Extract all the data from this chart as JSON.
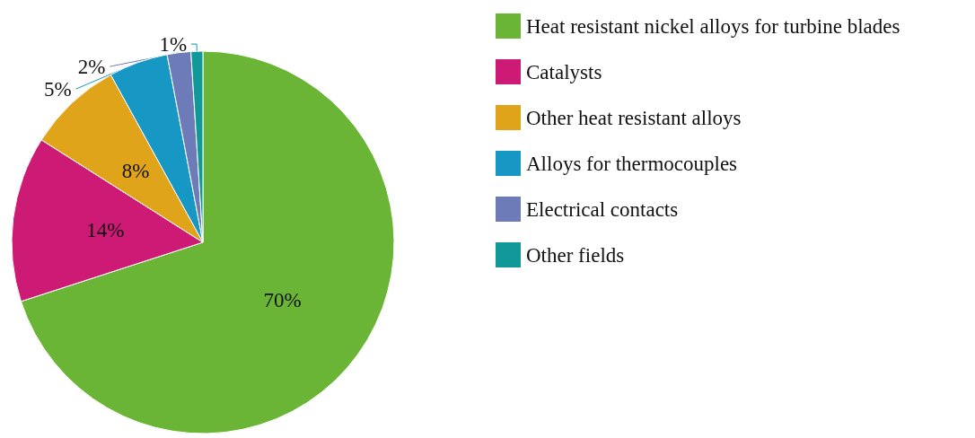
{
  "chart_data": {
    "type": "pie",
    "categories": [
      "Heat resistant nickel alloys for turbine blades",
      "Catalysts",
      "Other heat resistant alloys",
      "Alloys for thermocouples",
      "Electrical contacts",
      "Other fields"
    ],
    "values": [
      70,
      14,
      8,
      5,
      2,
      1
    ],
    "colors": [
      "#6ab535",
      "#cc1a75",
      "#e0a41a",
      "#1797c4",
      "#6d7bb8",
      "#11999a"
    ],
    "value_labels": [
      "70%",
      "14%",
      "8%",
      "5%",
      "2%",
      "1%"
    ],
    "legend": "right"
  }
}
